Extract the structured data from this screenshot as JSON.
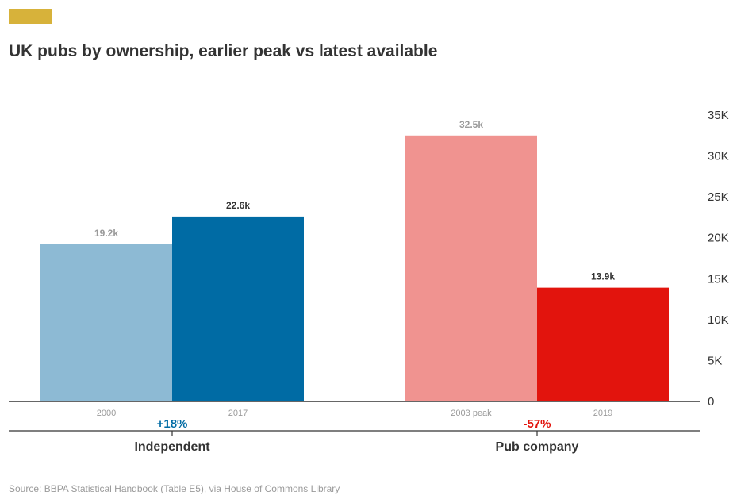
{
  "title": "UK pubs by ownership, earlier peak vs latest available",
  "source": "Source: BBPA Statistical Handbook (Table E5), via House of Commons Library",
  "colors": {
    "accent": "#d7b23a",
    "independent_earlier": "#8dbad4",
    "independent_latest": "#006ba4",
    "pubco_earlier": "#f09390",
    "pubco_latest": "#e2140d",
    "axis": "#333333",
    "muted": "#9a9a9a"
  },
  "chart_data": {
    "type": "bar",
    "ylim": [
      0,
      35000
    ],
    "yticks": [
      {
        "value": 0,
        "label": "0"
      },
      {
        "value": 5000,
        "label": "5K"
      },
      {
        "value": 10000,
        "label": "10K"
      },
      {
        "value": 15000,
        "label": "15K"
      },
      {
        "value": 20000,
        "label": "20K"
      },
      {
        "value": 25000,
        "label": "25K"
      },
      {
        "value": 30000,
        "label": "30K"
      },
      {
        "value": 35000,
        "label": "35K"
      }
    ],
    "y_axis_position": "right",
    "grid": false,
    "groups": [
      {
        "name": "Independent",
        "change": "+18%",
        "change_color": "#006ba4",
        "bars": [
          {
            "x_label": "2000",
            "value": 19200,
            "value_label": "19.2k",
            "color": "#8dbad4",
            "emphasis": false
          },
          {
            "x_label": "2017",
            "value": 22600,
            "value_label": "22.6k",
            "color": "#006ba4",
            "emphasis": true
          }
        ]
      },
      {
        "name": "Pub company",
        "change": "-57%",
        "change_color": "#e2140d",
        "bars": [
          {
            "x_label": "2003 peak",
            "value": 32500,
            "value_label": "32.5k",
            "color": "#f09390",
            "emphasis": false
          },
          {
            "x_label": "2019",
            "value": 13900,
            "value_label": "13.9k",
            "color": "#e2140d",
            "emphasis": true
          }
        ]
      }
    ]
  }
}
